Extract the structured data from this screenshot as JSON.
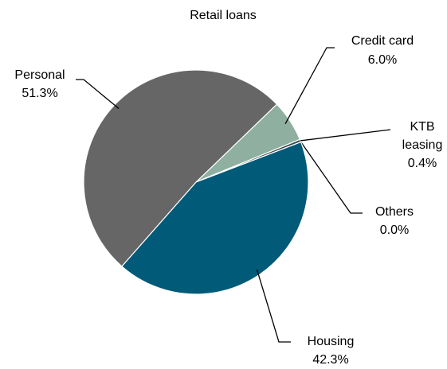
{
  "chart_data": {
    "type": "pie",
    "title": "Retail loans",
    "categories": [
      "Credit card",
      "KTB leasing",
      "Others",
      "Housing",
      "Personal"
    ],
    "values": [
      6.0,
      0.4,
      0.0,
      42.3,
      51.3
    ],
    "value_labels": [
      "6.0%",
      "0.4%",
      "0.0%",
      "42.3%",
      "51.3%"
    ],
    "colors": [
      "#8fb0a0",
      "#3d4a4f",
      "#2a2a2a",
      "#005a78",
      "#666666"
    ]
  }
}
